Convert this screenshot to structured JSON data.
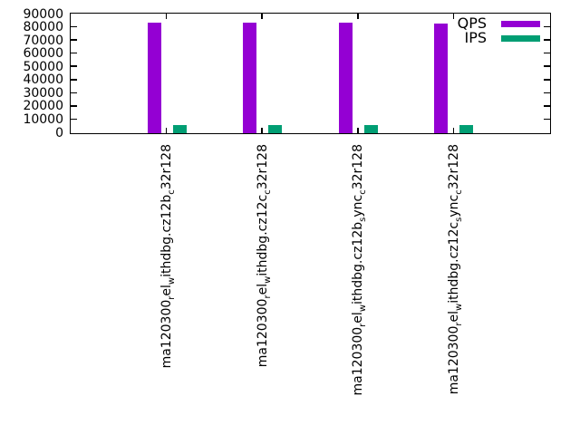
{
  "chart_data": {
    "type": "bar",
    "title": "",
    "xlabel": "",
    "ylabel": "",
    "categories": [
      "ma120300_rel_withdbg.cz12b_c32r128",
      "ma120300_rel_withdbg.cz12c_c32r128",
      "ma120300_rel_withdbg.cz12b_sync_c32r128",
      "ma120300_rel_withdbg.cz12c_sync_c32r128"
    ],
    "category_text_style": "gnuplot-enhanced-subscripts",
    "series": [
      {
        "name": "QPS",
        "color": "#9400d3",
        "values": [
          84100,
          84000,
          83900,
          83300
        ]
      },
      {
        "name": "IPS",
        "color": "#009e73",
        "values": [
          6000,
          6000,
          6000,
          6000
        ]
      }
    ],
    "ylim": [
      0,
      90000
    ],
    "ytick_step": 10000,
    "ytick_labels": [
      "0",
      "10000",
      "20000",
      "30000",
      "40000",
      "50000",
      "60000",
      "70000",
      "80000",
      "90000"
    ],
    "xtick_label_rotation_degrees": 90,
    "grid": false,
    "legend_position": "top-right-inside",
    "background_color": "#ffffff",
    "frame_color": "#000000"
  }
}
